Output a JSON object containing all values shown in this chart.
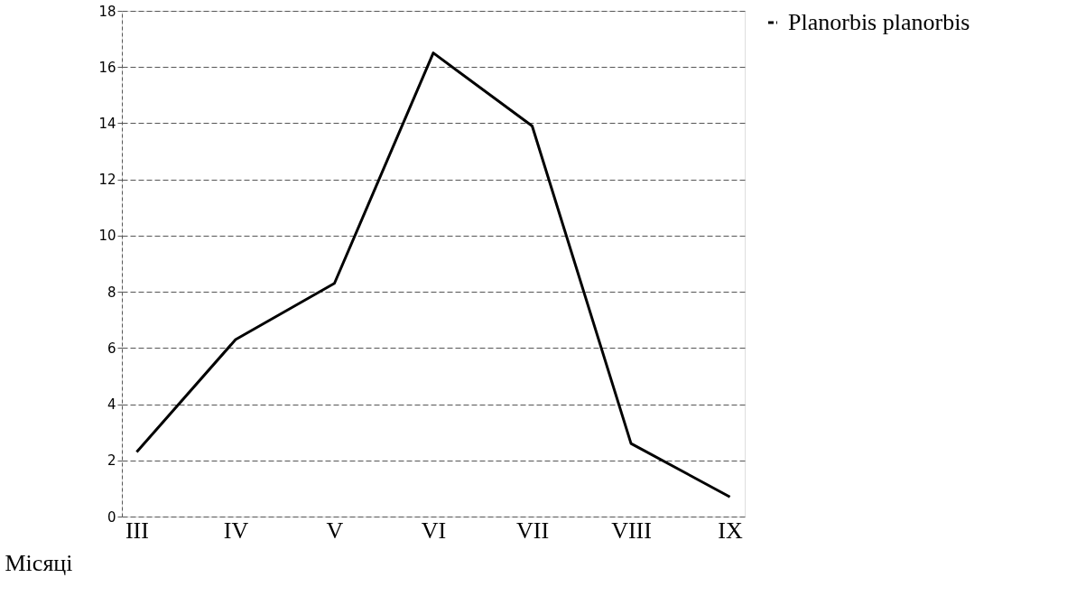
{
  "chart_data": {
    "type": "line",
    "xlabel": "Місяці",
    "categories": [
      "III",
      "IV",
      "V",
      "VI",
      "VII",
      "VIII",
      "IX"
    ],
    "series": [
      {
        "name": "Planorbis planorbis",
        "color": "#000000",
        "values": [
          2.3,
          6.3,
          8.3,
          16.5,
          13.9,
          2.6,
          0.7
        ]
      }
    ],
    "ylim": [
      0,
      18
    ],
    "yticks": [
      0,
      2,
      4,
      6,
      8,
      10,
      12,
      14,
      16,
      18
    ],
    "grid": "y",
    "legend": "right",
    "marker": "none",
    "line_style": "solid"
  }
}
